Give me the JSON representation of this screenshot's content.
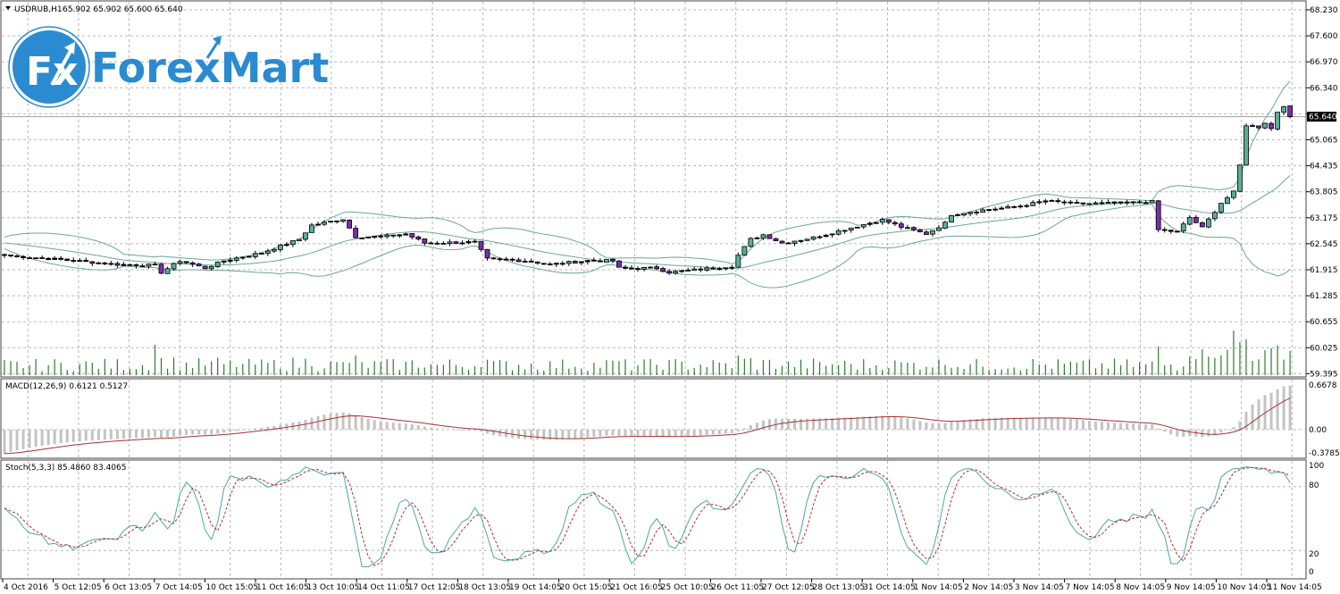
{
  "header": {
    "symbol": "USDRUB,H1",
    "ohlc": "65.902 65.902 65.600 65.640"
  },
  "logo": {
    "mark": "Fx",
    "brand": "ForexMart"
  },
  "colors": {
    "bull": "#5aae98",
    "bear": "#7a2ea6",
    "bands": "#6aa893",
    "volume": "#2f7a2f",
    "macd_hist": "#c3c3c3",
    "macd_signal": "#a83232",
    "stoch_main": "#4fa6a6",
    "stoch_signal": "#b03030",
    "brand": "#2b8bd0"
  },
  "price_axis": [
    "68.230",
    "67.600",
    "66.970",
    "66.340",
    "65.710",
    "65.065",
    "64.435",
    "63.805",
    "63.175",
    "62.545",
    "61.915",
    "61.285",
    "60.655",
    "60.025",
    "59.395"
  ],
  "current_price": "65.640",
  "macd": {
    "label": "MACD(12,26,9) 0.6121 0.5127",
    "axis": [
      "0.6678",
      "0.00",
      "-0.3785"
    ]
  },
  "stoch": {
    "label": "Stoch(5,3,3) 85.4860 83.4065",
    "axis": [
      "100",
      "80",
      "20",
      "0"
    ]
  },
  "time_axis": [
    "4 Oct 2016",
    "5 Oct 12:05",
    "6 Oct 13:05",
    "7 Oct 14:05",
    "10 Oct 15:05",
    "11 Oct 16:05",
    "13 Oct 10:05",
    "14 Oct 11:05",
    "17 Oct 12:05",
    "18 Oct 13:05",
    "19 Oct 14:05",
    "20 Oct 15:05",
    "21 Oct 16:05",
    "25 Oct 10:05",
    "26 Oct 11:05",
    "27 Oct 12:05",
    "28 Oct 13:05",
    "31 Oct 14:05",
    "1 Nov 14:05",
    "2 Nov 14:05",
    "3 Nov 14:05",
    "7 Nov 14:05",
    "8 Nov 14:05",
    "9 Nov 14:05",
    "10 Nov 14:05",
    "11 Nov 14:05"
  ],
  "chart_data": {
    "type": "candlestick",
    "title": "USDRUB,H1",
    "bars": 206,
    "ylim": [
      59.395,
      68.23
    ],
    "close_keypoints": [
      [
        0,
        62.28
      ],
      [
        8,
        62.19
      ],
      [
        18,
        62.06
      ],
      [
        24,
        62.04
      ],
      [
        25,
        61.87
      ],
      [
        28,
        62.15
      ],
      [
        32,
        61.97
      ],
      [
        35,
        62.15
      ],
      [
        41,
        62.34
      ],
      [
        47,
        62.67
      ],
      [
        49,
        63.01
      ],
      [
        54,
        63.16
      ],
      [
        56,
        62.73
      ],
      [
        60,
        62.73
      ],
      [
        64,
        62.8
      ],
      [
        67,
        62.58
      ],
      [
        75,
        62.6
      ],
      [
        77,
        62.19
      ],
      [
        83,
        62.15
      ],
      [
        87,
        62.06
      ],
      [
        93,
        62.15
      ],
      [
        97,
        62.15
      ],
      [
        98,
        61.97
      ],
      [
        104,
        61.97
      ],
      [
        106,
        61.87
      ],
      [
        113,
        61.97
      ],
      [
        116,
        62.02
      ],
      [
        117,
        62.28
      ],
      [
        119,
        62.67
      ],
      [
        121,
        62.78
      ],
      [
        124,
        62.58
      ],
      [
        129,
        62.71
      ],
      [
        134,
        62.91
      ],
      [
        140,
        63.14
      ],
      [
        143,
        62.97
      ],
      [
        147,
        62.8
      ],
      [
        150,
        63.06
      ],
      [
        151,
        63.27
      ],
      [
        156,
        63.38
      ],
      [
        161,
        63.45
      ],
      [
        166,
        63.6
      ],
      [
        171,
        63.53
      ],
      [
        179,
        63.55
      ],
      [
        183,
        63.58
      ],
      [
        184,
        62.9
      ],
      [
        187,
        62.85
      ],
      [
        189,
        63.2
      ],
      [
        191,
        62.95
      ],
      [
        194,
        63.55
      ],
      [
        196,
        63.81
      ],
      [
        197,
        64.46
      ],
      [
        198,
        65.44
      ],
      [
        200,
        65.39
      ],
      [
        201,
        65.5
      ],
      [
        202,
        65.35
      ],
      [
        203,
        65.76
      ],
      [
        204,
        65.91
      ],
      [
        205,
        65.64
      ]
    ],
    "indicators": [
      "Bollinger Bands(20,2)",
      "Volumes",
      "MACD(12,26,9)",
      "Stoch(5,3,3)"
    ],
    "macd_ylim": [
      -0.3785,
      0.6678
    ],
    "stoch_ylim": [
      0,
      100
    ]
  }
}
